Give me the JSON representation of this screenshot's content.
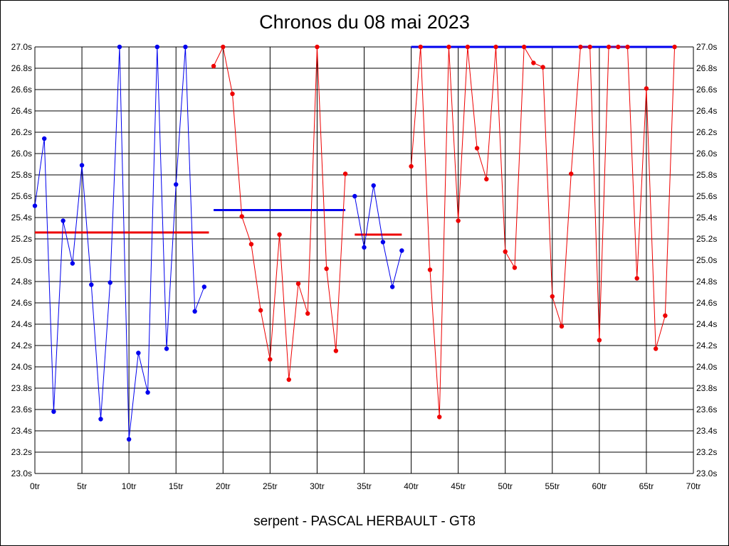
{
  "chart_data": {
    "type": "line",
    "title": "Chronos du 08 mai 2023",
    "caption": "serpent - PASCAL HERBAULT - GT8",
    "xlim": [
      0,
      70
    ],
    "ylim": [
      23.0,
      27.0
    ],
    "grid": true,
    "x_ticks": [
      0,
      5,
      10,
      15,
      20,
      25,
      30,
      35,
      40,
      45,
      50,
      55,
      60,
      65,
      70
    ],
    "x_tick_labels": [
      "0tr",
      "5tr",
      "10tr",
      "15tr",
      "20tr",
      "25tr",
      "30tr",
      "35tr",
      "40tr",
      "45tr",
      "50tr",
      "55tr",
      "60tr",
      "65tr",
      "70tr"
    ],
    "y_ticks": [
      23.0,
      23.2,
      23.4,
      23.6,
      23.8,
      24.0,
      24.2,
      24.4,
      24.6,
      24.8,
      25.0,
      25.2,
      25.4,
      25.6,
      25.8,
      26.0,
      26.2,
      26.4,
      26.6,
      26.8,
      27.0
    ],
    "y_tick_labels": [
      "23.0s",
      "23.2s",
      "23.4s",
      "23.6s",
      "23.8s",
      "24.0s",
      "24.2s",
      "24.4s",
      "24.6s",
      "24.8s",
      "25.0s",
      "25.2s",
      "25.4s",
      "25.6s",
      "25.8s",
      "26.0s",
      "26.2s",
      "26.4s",
      "26.6s",
      "26.8s",
      "27.0s"
    ],
    "series": [
      {
        "color": "#0000ee",
        "x": [
          0,
          1,
          2,
          3,
          4,
          5,
          6,
          7,
          8,
          9,
          10,
          11,
          12,
          13,
          14,
          15,
          16,
          17,
          18
        ],
        "y": [
          25.51,
          26.14,
          23.58,
          25.37,
          24.97,
          25.89,
          24.77,
          23.51,
          24.79,
          27.0,
          23.32,
          24.13,
          23.76,
          27.0,
          24.17,
          25.71,
          27.0,
          24.52,
          24.75
        ]
      },
      {
        "color": "#ee0000",
        "x": [
          19,
          20,
          21,
          22,
          23,
          24,
          25,
          26,
          27,
          28,
          29,
          30,
          31,
          32,
          33
        ],
        "y": [
          26.82,
          27.0,
          26.56,
          25.41,
          25.15,
          24.53,
          24.07,
          25.24,
          23.88,
          24.78,
          24.5,
          27.0,
          24.92,
          24.15,
          25.81
        ]
      },
      {
        "color": "#0000ee",
        "x": [
          34,
          35,
          36,
          37,
          38,
          39
        ],
        "y": [
          25.6,
          25.12,
          25.7,
          25.17,
          24.75,
          25.09
        ]
      },
      {
        "color": "#ee0000",
        "x": [
          40,
          41,
          42,
          43,
          44,
          45,
          46,
          47,
          48,
          49,
          50,
          51,
          52,
          53,
          54,
          55,
          56,
          57,
          58,
          59,
          60,
          61,
          62,
          63,
          64,
          65,
          66,
          67,
          68
        ],
        "y": [
          25.88,
          27.0,
          24.91,
          23.53,
          27.0,
          25.37,
          27.0,
          26.05,
          25.76,
          27.0,
          25.08,
          24.93,
          27.0,
          26.85,
          26.81,
          24.66,
          24.38,
          25.81,
          27.0,
          27.0,
          24.25,
          27.0,
          27.0,
          27.0,
          24.83,
          26.61,
          24.17,
          24.48,
          27.0
        ]
      }
    ],
    "averages": [
      {
        "color": "#ee0000",
        "x_from": 0,
        "x_to": 18.5,
        "y": 25.26
      },
      {
        "color": "#0000ee",
        "x_from": 19,
        "x_to": 33,
        "y": 25.47
      },
      {
        "color": "#ee0000",
        "x_from": 34,
        "x_to": 39,
        "y": 25.24
      },
      {
        "color": "#0000ee",
        "x_from": 40,
        "x_to": 68,
        "y": 27.0
      }
    ]
  }
}
